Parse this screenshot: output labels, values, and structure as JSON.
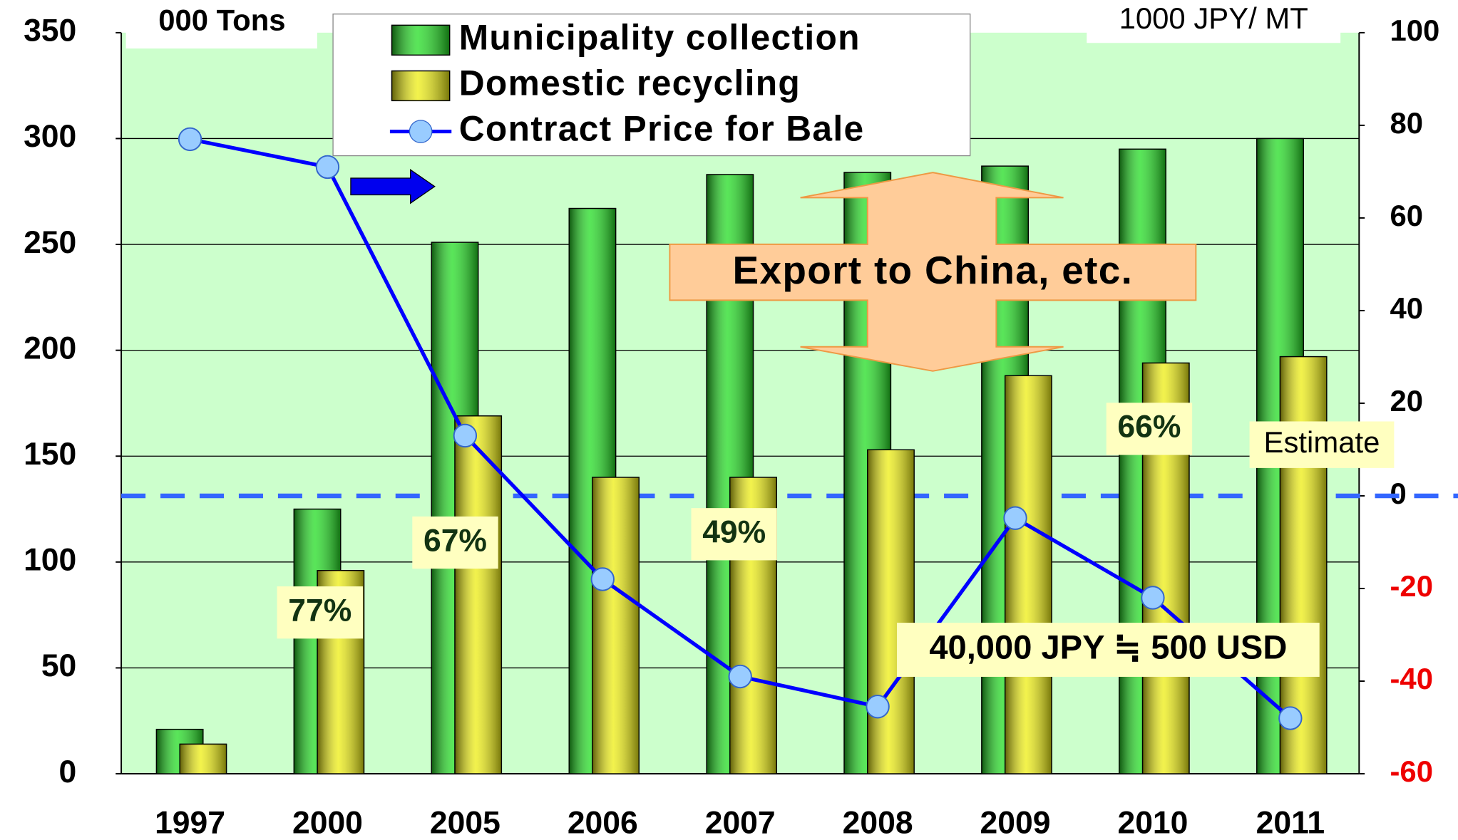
{
  "chart_data": {
    "type": "bar",
    "y_axis_label": "000 Tons",
    "y2_axis_label": "1000 JPY/ MT",
    "categories": [
      "1997",
      "2000",
      "2005",
      "2006",
      "2007",
      "2008",
      "2009",
      "2010",
      "2011"
    ],
    "series": [
      {
        "name": "Municipality collection",
        "color": "#22dd22",
        "values": [
          21,
          125,
          251,
          267,
          283,
          284,
          287,
          295,
          300
        ]
      },
      {
        "name": "Domestic recycling",
        "color": "#eeee11",
        "values": [
          14,
          96,
          169,
          140,
          140,
          153,
          188,
          194,
          197
        ]
      },
      {
        "name": "Contract Price for Bale",
        "color": "#0000ff",
        "marker_color": "#99ccff",
        "type": "line",
        "axis": "y2",
        "values": [
          77,
          71,
          13,
          -18,
          -39,
          -45.5,
          -4.8,
          -22,
          -48
        ]
      }
    ],
    "ylim": [
      0,
      350
    ],
    "yticks": [
      0,
      50,
      100,
      150,
      200,
      250,
      300,
      350
    ],
    "y2lim": [
      -60,
      100
    ],
    "y2ticks": [
      -60,
      -40,
      -20,
      0,
      20,
      40,
      60,
      80,
      100
    ],
    "y2_negative_tick_color": "#ee0000",
    "y2_reference_line": 0,
    "grid": true,
    "background": "#ccffcc",
    "annotations": [
      "77%",
      "67%",
      "49%",
      "66%",
      "Estimate",
      "Export to China, etc.",
      "40,000 JPY ≒ 500 USD"
    ]
  }
}
